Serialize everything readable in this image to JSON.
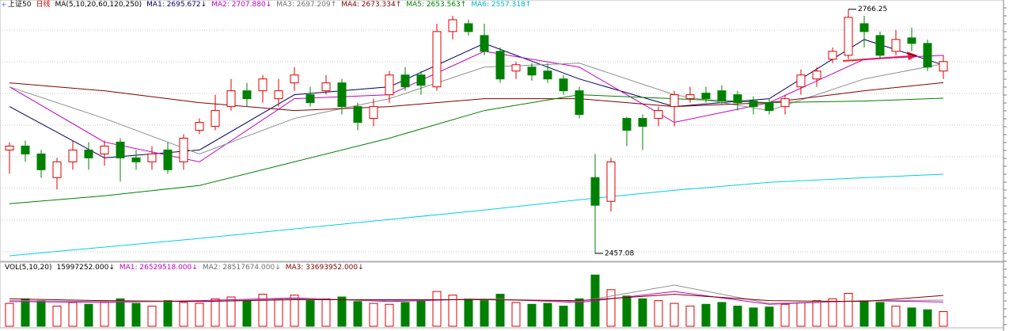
{
  "header": {
    "items": [
      {
        "text": "上证50",
        "color": "#000000"
      },
      {
        "text": "日线",
        "color": "#e00000"
      },
      {
        "text": "MA(5,10,20,60,120,250)",
        "color": "#000000"
      },
      {
        "text": "MA1: 2695.672↓",
        "color": "#000060"
      },
      {
        "text": "MA2: 2707.880↓",
        "color": "#c000c0"
      },
      {
        "text": "MA3: 2697.209↑",
        "color": "#707070"
      },
      {
        "text": "MA4: 2673.334↑",
        "color": "#800000"
      },
      {
        "text": "MA5: 2653.563↑",
        "color": "#008000"
      },
      {
        "text": "MA6: 2557.318↑",
        "color": "#00b8c8"
      }
    ]
  },
  "vol_header": {
    "items": [
      {
        "text": "VOL(5,10,20)",
        "color": "#000000"
      },
      {
        "text": "15997252.000↓",
        "color": "#000000"
      },
      {
        "text": "MA1: 26529518.000↓",
        "color": "#c000c0"
      },
      {
        "text": "MA2: 28517674.000↓",
        "color": "#707070"
      },
      {
        "text": "MA3: 33693952.000↓",
        "color": "#800000"
      }
    ]
  },
  "chart_data": [
    {
      "type": "candlestick",
      "ylim": [
        2447,
        2778
      ],
      "up_color": "#e00000",
      "down_color": "#008000",
      "open": [
        2588,
        2593,
        2583,
        2553,
        2573,
        2588,
        2583,
        2598,
        2578,
        2573,
        2588,
        2573,
        2613,
        2618,
        2643,
        2663,
        2663,
        2653,
        2673,
        2658,
        2663,
        2673,
        2643,
        2628,
        2658,
        2683,
        2683,
        2668,
        2738,
        2748,
        2733,
        2713,
        2688,
        2693,
        2688,
        2678,
        2663,
        2553,
        2523,
        2628,
        2628,
        2628,
        2643,
        2653,
        2660,
        2663,
        2658,
        2650,
        2648,
        2643,
        2668,
        2678,
        2703,
        2708,
        2748,
        2733,
        2713,
        2730,
        2723,
        2688
      ],
      "high": [
        2598,
        2600,
        2588,
        2578,
        2600,
        2598,
        2600,
        2603,
        2588,
        2593,
        2598,
        2608,
        2628,
        2658,
        2678,
        2673,
        2683,
        2678,
        2693,
        2668,
        2683,
        2678,
        2648,
        2653,
        2688,
        2693,
        2688,
        2748,
        2758,
        2753,
        2748,
        2718,
        2700,
        2698,
        2698,
        2683,
        2668,
        2583,
        2578,
        2630,
        2633,
        2643,
        2663,
        2668,
        2668,
        2670,
        2663,
        2656,
        2653,
        2658,
        2690,
        2693,
        2718,
        2766.25,
        2758,
        2738,
        2740,
        2743,
        2728,
        2708
      ],
      "low": [
        2558,
        2573,
        2553,
        2538,
        2563,
        2563,
        2568,
        2548,
        2563,
        2563,
        2558,
        2563,
        2608,
        2613,
        2638,
        2643,
        2648,
        2643,
        2663,
        2643,
        2658,
        2633,
        2613,
        2618,
        2648,
        2663,
        2658,
        2663,
        2728,
        2733,
        2708,
        2673,
        2678,
        2676,
        2673,
        2658,
        2628,
        2457.08,
        2510,
        2593,
        2588,
        2618,
        2618,
        2648,
        2648,
        2646,
        2638,
        2633,
        2633,
        2633,
        2658,
        2668,
        2698,
        2703,
        2718,
        2703,
        2708,
        2713,
        2688,
        2678
      ],
      "close": [
        2593,
        2583,
        2563,
        2573,
        2588,
        2578,
        2593,
        2578,
        2573,
        2583,
        2563,
        2603,
        2623,
        2638,
        2663,
        2653,
        2678,
        2663,
        2683,
        2648,
        2673,
        2643,
        2623,
        2643,
        2683,
        2668,
        2670,
        2738,
        2753,
        2738,
        2713,
        2678,
        2696,
        2683,
        2678,
        2663,
        2633,
        2518,
        2573,
        2613,
        2618,
        2638,
        2658,
        2658,
        2653,
        2650,
        2648,
        2643,
        2638,
        2653,
        2683,
        2688,
        2713,
        2756,
        2738,
        2708,
        2728,
        2723,
        2693,
        2700
      ],
      "ma_index": [
        0,
        6,
        12,
        18,
        24,
        30,
        36,
        42,
        48,
        54,
        59
      ],
      "series": [
        {
          "color": "#000060",
          "values": [
            2643,
            2578,
            2588,
            2658,
            2668,
            2723,
            2678,
            2643,
            2653,
            2728,
            2695.672
          ]
        },
        {
          "color": "#c000c0",
          "values": [
            2668,
            2598,
            2573,
            2653,
            2658,
            2713,
            2693,
            2623,
            2648,
            2703,
            2707.88
          ]
        },
        {
          "color": "#909090",
          "values": [
            2668,
            2628,
            2583,
            2628,
            2653,
            2693,
            2698,
            2658,
            2638,
            2678,
            2697.209
          ]
        },
        {
          "color": "#800000",
          "values": [
            2673,
            2663,
            2648,
            2638,
            2643,
            2653,
            2653,
            2643,
            2648,
            2663,
            2673.334
          ]
        },
        {
          "color": "#008000",
          "values": [
            2520,
            2530,
            2543,
            2573,
            2603,
            2638,
            2658,
            2653,
            2648,
            2650,
            2653.563
          ]
        },
        {
          "color": "#00d0e0",
          "values": [
            2454,
            2465,
            2476,
            2488,
            2500,
            2512,
            2525,
            2537,
            2547,
            2553,
            2557.318
          ]
        }
      ]
    },
    {
      "type": "bar",
      "ylim": [
        0,
        58000000
      ],
      "values": [
        25000000,
        30000000,
        28000000,
        22000000,
        26000000,
        24000000,
        27000000,
        30000000,
        25000000,
        22000000,
        28000000,
        26000000,
        25000000,
        30000000,
        32000000,
        28000000,
        35000000,
        30000000,
        34000000,
        28000000,
        30000000,
        32000000,
        27000000,
        25000000,
        24000000,
        26000000,
        28000000,
        38000000,
        34000000,
        30000000,
        28000000,
        35000000,
        26000000,
        24000000,
        25000000,
        22000000,
        30000000,
        56000000,
        40000000,
        33000000,
        30000000,
        28000000,
        25000000,
        22000000,
        24000000,
        26000000,
        22000000,
        20000000,
        21000000,
        24000000,
        26000000,
        28000000,
        30000000,
        36000000,
        28000000,
        26000000,
        22000000,
        20000000,
        18000000,
        15997252
      ],
      "ma_index": [
        0,
        6,
        12,
        18,
        24,
        30,
        36,
        42,
        48,
        54,
        59
      ],
      "series": [
        {
          "color": "#c000c0",
          "values": [
            27000000,
            26000000,
            28000000,
            31000000,
            27000000,
            30000000,
            26000000,
            38000000,
            24000000,
            28000000,
            26529518
          ]
        },
        {
          "color": "#909090",
          "values": [
            28000000,
            27000000,
            27000000,
            30000000,
            28000000,
            30000000,
            27000000,
            45000000,
            25000000,
            28000000,
            28517674
          ]
        },
        {
          "color": "#800000",
          "values": [
            30000000,
            28000000,
            27000000,
            29000000,
            29000000,
            29000000,
            28000000,
            35000000,
            28000000,
            27000000,
            33693952
          ]
        }
      ]
    }
  ]
}
